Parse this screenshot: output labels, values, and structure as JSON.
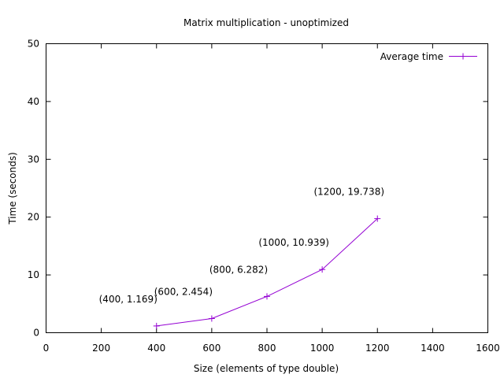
{
  "chart_data": {
    "type": "line",
    "title": "Matrix multiplication - unoptimized",
    "xlabel": "Size (elements of type double)",
    "ylabel": "Time (seconds)",
    "xlim": [
      0,
      1600
    ],
    "ylim": [
      0,
      50
    ],
    "xticks": [
      0,
      200,
      400,
      600,
      800,
      1000,
      1200,
      1400,
      1600
    ],
    "yticks": [
      0,
      10,
      20,
      30,
      40,
      50
    ],
    "grid": false,
    "legend_position": "top-right",
    "series": [
      {
        "name": "Average time",
        "color": "#9400d3",
        "marker": "plus",
        "x": [
          400,
          600,
          800,
          1000,
          1200
        ],
        "y": [
          1.169,
          2.454,
          6.282,
          10.939,
          19.738
        ]
      }
    ],
    "annotations": [
      {
        "text": "(400, 1.169)",
        "x": 400,
        "y": 1.169
      },
      {
        "text": "(600, 2.454)",
        "x": 600,
        "y": 2.454
      },
      {
        "text": "(800, 6.282)",
        "x": 800,
        "y": 6.282
      },
      {
        "text": "(1000, 10.939)",
        "x": 1000,
        "y": 10.939
      },
      {
        "text": "(1200, 19.738)",
        "x": 1200,
        "y": 19.738
      }
    ]
  }
}
